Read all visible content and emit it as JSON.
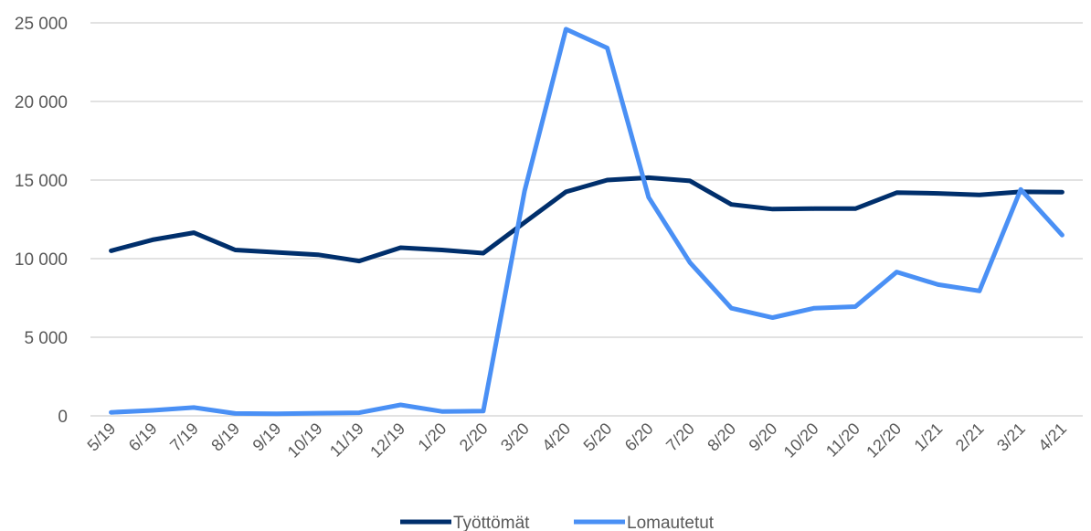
{
  "chart_data": {
    "type": "line",
    "title": "",
    "xlabel": "",
    "ylabel": "",
    "categories": [
      "5/19",
      "6/19",
      "7/19",
      "8/19",
      "9/19",
      "10/19",
      "11/19",
      "12/19",
      "1/20",
      "2/20",
      "3/20",
      "4/20",
      "5/20",
      "6/20",
      "7/20",
      "8/20",
      "9/20",
      "10/20",
      "11/20",
      "12/20",
      "1/21",
      "2/21",
      "3/21",
      "4/21"
    ],
    "y_ticks": [
      0,
      5000,
      10000,
      15000,
      20000,
      25000
    ],
    "y_tick_labels": [
      "0",
      "5 000",
      "10 000",
      "15 000",
      "20 000",
      "25 000"
    ],
    "ylim": [
      0,
      25000
    ],
    "grid": "horizontal",
    "legend_position": "bottom",
    "series": [
      {
        "name": "Työttömät",
        "color": "#002f6c",
        "values": [
          10500,
          11200,
          11650,
          10550,
          10400,
          10250,
          9850,
          10700,
          10550,
          10350,
          12300,
          14250,
          15000,
          15150,
          14950,
          13450,
          13150,
          13180,
          13180,
          14200,
          14150,
          14050,
          14250,
          14230
        ]
      },
      {
        "name": "Lomautetut",
        "color": "#4a90f5",
        "values": [
          220,
          350,
          530,
          150,
          130,
          170,
          200,
          700,
          280,
          300,
          14300,
          24600,
          23400,
          13900,
          9750,
          6850,
          6250,
          6850,
          6950,
          9150,
          8350,
          7950,
          14400,
          11500
        ]
      }
    ]
  }
}
